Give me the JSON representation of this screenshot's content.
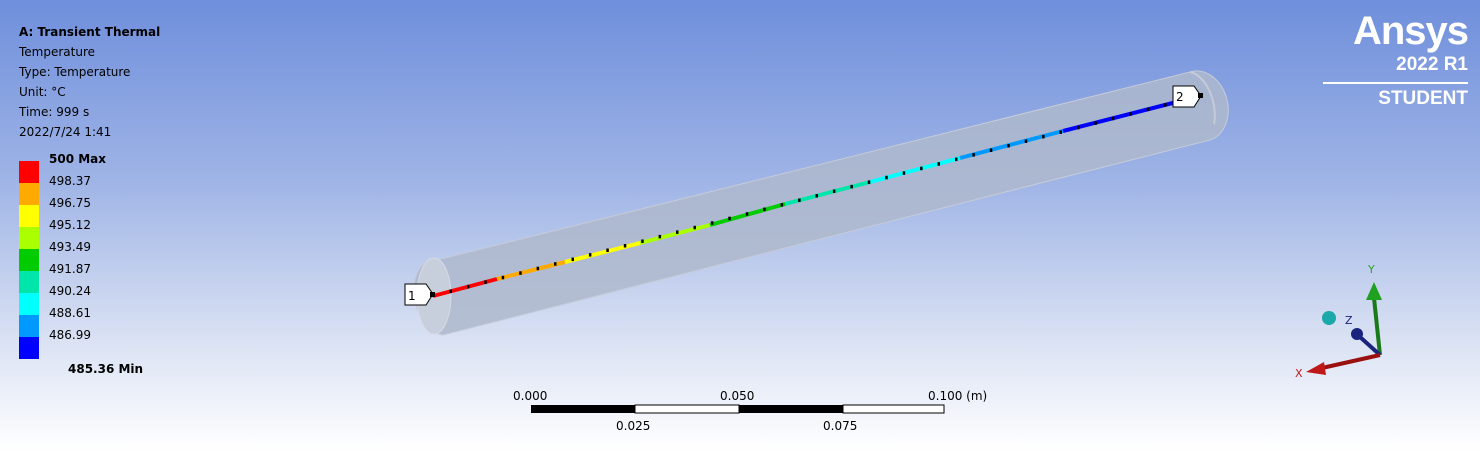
{
  "info": {
    "title": "A: Transient Thermal",
    "line1": "Temperature",
    "line2": "Type: Temperature",
    "line3": "Unit: °C",
    "line4": "Time: 999 s",
    "line5": "2022/7/24 1:41"
  },
  "legend": {
    "max_label": "500 Max",
    "min_label": "485.36 Min",
    "levels": [
      "498.37",
      "496.75",
      "495.12",
      "493.49",
      "491.87",
      "490.24",
      "488.61",
      "486.99"
    ],
    "colors": [
      "#ff0000",
      "#ffaa00",
      "#ffff00",
      "#aaff00",
      "#00cc00",
      "#00e5aa",
      "#00ffff",
      "#0099ff",
      "#0000ff"
    ]
  },
  "logo": {
    "brand": "Ansys",
    "version": "2022 R1",
    "edition": "STUDENT"
  },
  "probes": {
    "p1": "1",
    "p2": "2"
  },
  "scale_bar": {
    "t0": "0.000",
    "t1": "0.050",
    "t2": "0.100 (m)",
    "b0": "0.025",
    "b1": "0.075"
  },
  "triad": {
    "x": "X",
    "y": "Y",
    "z": "Z"
  }
}
